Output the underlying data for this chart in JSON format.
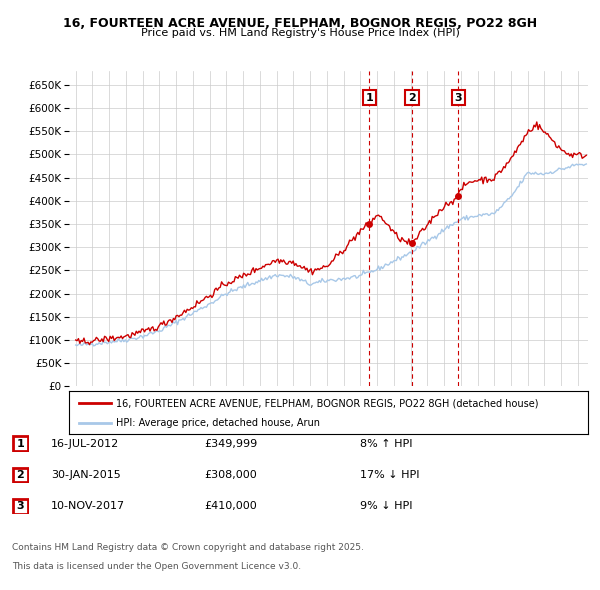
{
  "title_line1": "16, FOURTEEN ACRE AVENUE, FELPHAM, BOGNOR REGIS, PO22 8GH",
  "title_line2": "Price paid vs. HM Land Registry's House Price Index (HPI)",
  "legend_property": "16, FOURTEEN ACRE AVENUE, FELPHAM, BOGNOR REGIS, PO22 8GH (detached house)",
  "legend_hpi": "HPI: Average price, detached house, Arun",
  "property_color": "#cc0000",
  "hpi_color": "#a8c8e8",
  "vline_color": "#cc0000",
  "box_color": "#cc0000",
  "ylim": [
    0,
    680000
  ],
  "yticks": [
    0,
    50000,
    100000,
    150000,
    200000,
    250000,
    300000,
    350000,
    400000,
    450000,
    500000,
    550000,
    600000,
    650000
  ],
  "xlim_start": 1994.6,
  "xlim_end": 2025.6,
  "sale_dates": [
    2012.54,
    2015.08,
    2017.86
  ],
  "sale_prices": [
    349999,
    308000,
    410000
  ],
  "sale_labels": [
    "1",
    "2",
    "3"
  ],
  "transactions": [
    {
      "label": "1",
      "date": "16-JUL-2012",
      "price": "£349,999",
      "pct": "8% ↑ HPI"
    },
    {
      "label": "2",
      "date": "30-JAN-2015",
      "price": "£308,000",
      "pct": "17% ↓ HPI"
    },
    {
      "label": "3",
      "date": "10-NOV-2017",
      "price": "£410,000",
      "pct": "9% ↓ HPI"
    }
  ],
  "footnote_line1": "Contains HM Land Registry data © Crown copyright and database right 2025.",
  "footnote_line2": "This data is licensed under the Open Government Licence v3.0.",
  "background_color": "#ffffff",
  "grid_color": "#cccccc"
}
